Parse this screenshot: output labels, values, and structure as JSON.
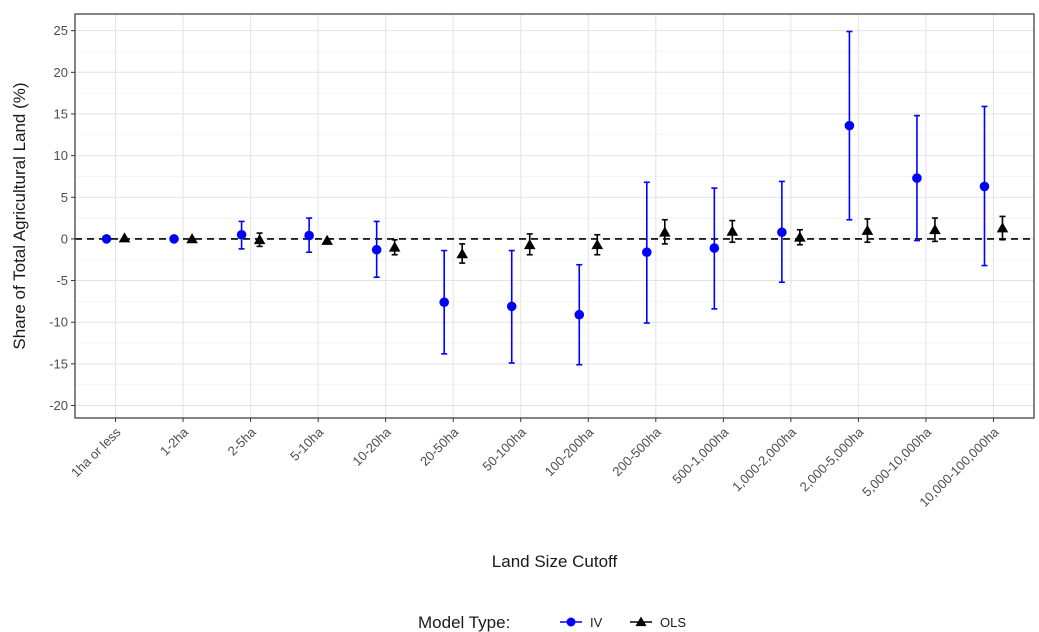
{
  "chart_data": {
    "type": "scatter",
    "xlabel": "Land Size Cutoff",
    "ylabel": "Share of Total Agricultural Land (%)",
    "ylim": [
      -21.5,
      27
    ],
    "yticks": [
      25,
      20,
      15,
      10,
      5,
      0,
      -5,
      -10,
      -15,
      -20
    ],
    "ytick_labels": [
      "25",
      "20",
      "15",
      "10",
      "5",
      "0",
      "-5",
      "-10",
      "-15",
      "-20"
    ],
    "grid": true,
    "reference_line": {
      "y": 0,
      "style": "dashed"
    },
    "legend_position": "bottom",
    "categories": [
      "1ha or less",
      "1-2ha",
      "2-5ha",
      "5-10ha",
      "10-20ha",
      "20-50ha",
      "50-100ha",
      "100-200ha",
      "200-500ha",
      "500-1,000ha",
      "1,000-2,000ha",
      "2,000-5,000ha",
      "5,000-10,000ha",
      "10,000-100,000ha"
    ],
    "legend": {
      "title": "Model Type:",
      "items": [
        {
          "label": "IV",
          "color": "#0000ff",
          "marker": "circle"
        },
        {
          "label": "OLS",
          "color": "#000000",
          "marker": "triangle"
        }
      ]
    },
    "series": [
      {
        "name": "IV",
        "color": "#0000ff",
        "marker": "circle",
        "values": [
          0.0,
          0.0,
          0.5,
          0.4,
          -1.3,
          -7.6,
          -8.1,
          -9.1,
          -1.6,
          -1.1,
          0.8,
          13.6,
          7.3,
          6.3
        ],
        "lower": [
          null,
          null,
          -1.2,
          -1.6,
          -4.6,
          -13.8,
          -14.9,
          -15.1,
          -10.1,
          -8.4,
          -5.2,
          2.3,
          -0.2,
          -3.2
        ],
        "upper": [
          null,
          null,
          2.1,
          2.5,
          2.1,
          -1.4,
          -1.4,
          -3.1,
          6.8,
          6.1,
          6.9,
          24.9,
          14.8,
          15.9
        ]
      },
      {
        "name": "OLS",
        "color": "#000000",
        "marker": "triangle",
        "values": [
          0.1,
          0.0,
          -0.1,
          -0.2,
          -1.0,
          -1.8,
          -0.7,
          -0.7,
          0.8,
          0.9,
          0.2,
          1.0,
          1.1,
          1.3
        ],
        "lower": [
          null,
          null,
          -0.9,
          null,
          -1.9,
          -2.9,
          -1.9,
          -1.9,
          -0.6,
          -0.4,
          -0.7,
          -0.4,
          -0.3,
          -0.1
        ],
        "upper": [
          null,
          null,
          0.7,
          null,
          -0.1,
          -0.6,
          0.6,
          0.5,
          2.3,
          2.2,
          1.1,
          2.4,
          2.5,
          2.7
        ]
      }
    ]
  }
}
